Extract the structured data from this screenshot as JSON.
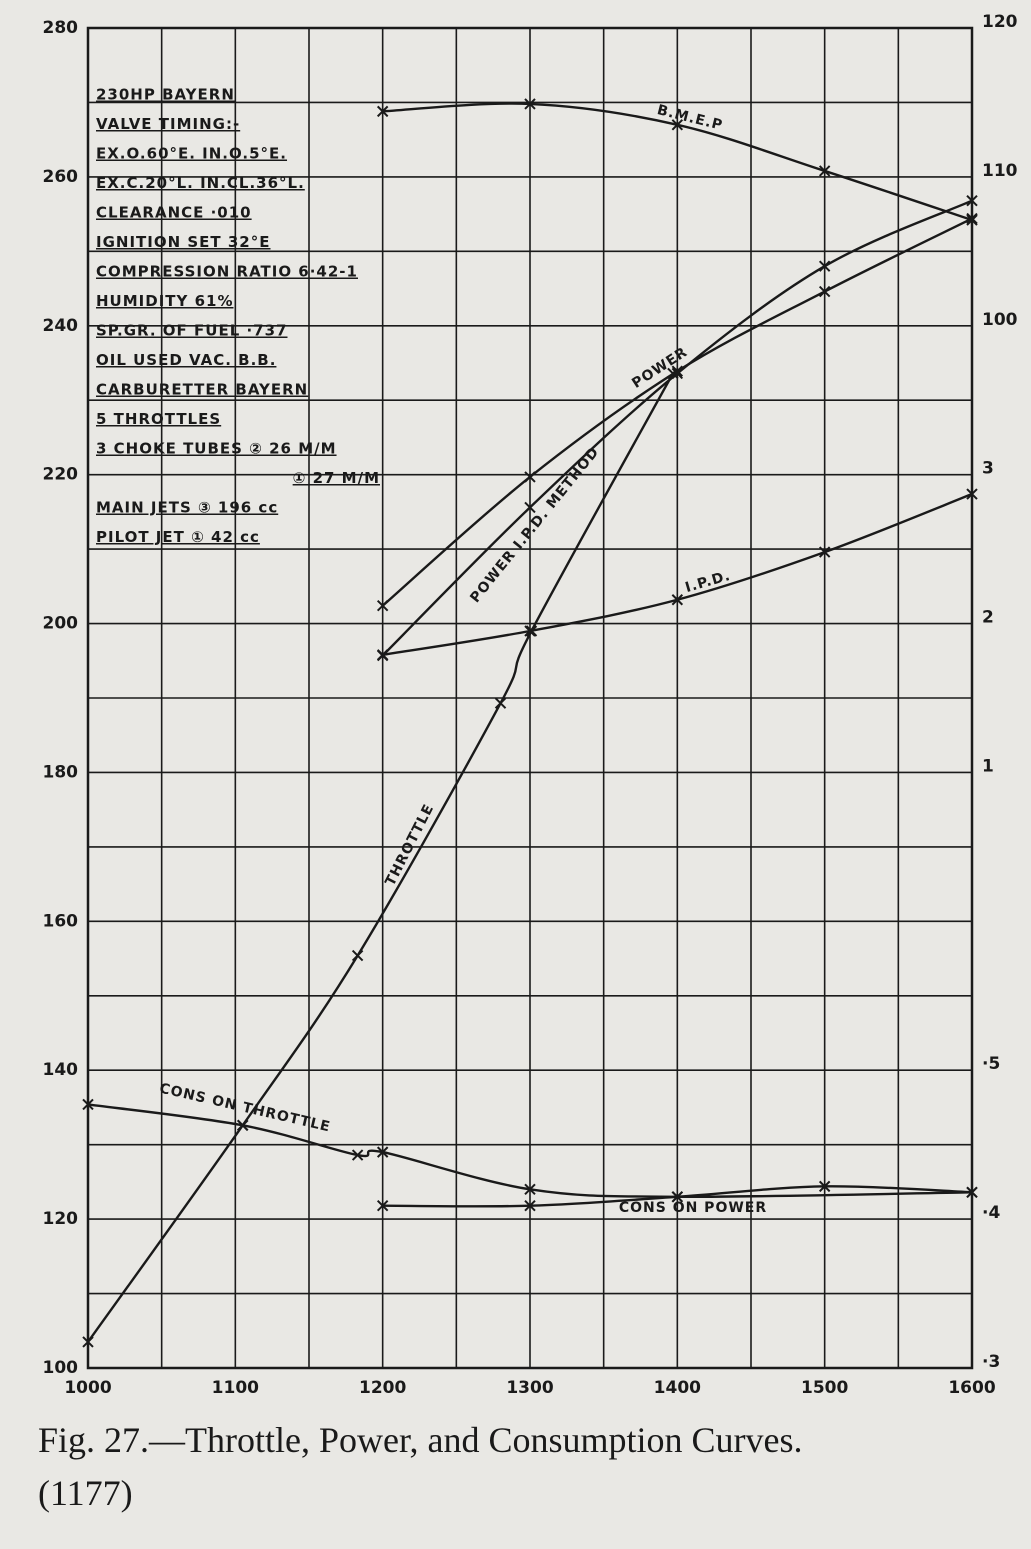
{
  "chart_data": {
    "type": "line",
    "caption": "Fig. 27.—Throttle, Power, and Consumption Curves.",
    "caption_number": "(1177)",
    "notes": [
      "230HP BAYERN",
      "VALVE TIMING:-",
      "EX.O.60°E. IN.O.5°E.",
      "EX.C.20°L. IN.CL.36°L.",
      "CLEARANCE ·010",
      "IGNITION SET 32°E",
      "COMPRESSION RATIO 6·42-1",
      "HUMIDITY 61%",
      "SP.GR. OF FUEL ·737",
      "OIL USED VAC. B.B.",
      "CARBURETTER BAYERN",
      "5 THROTTLES",
      "3 CHOKE TUBES ② 26 M/M",
      "① 27 M/M",
      "MAIN JETS ③ 196 cc",
      "PILOT JET ① 42 cc"
    ],
    "xlim": [
      1000,
      1600
    ],
    "xticks": [
      1000,
      1100,
      1200,
      1300,
      1400,
      1500,
      1600
    ],
    "xgrid": [
      1000,
      1050,
      1100,
      1150,
      1200,
      1250,
      1300,
      1350,
      1400,
      1450,
      1500,
      1550,
      1600
    ],
    "ylim": [
      100,
      280
    ],
    "yticks": [
      100,
      120,
      140,
      160,
      180,
      200,
      220,
      240,
      260,
      280
    ],
    "ygrid": [
      100,
      110,
      120,
      130,
      140,
      150,
      160,
      170,
      180,
      190,
      200,
      210,
      220,
      230,
      240,
      250,
      260,
      270,
      280
    ],
    "y2lim": [
      30,
      120
    ],
    "y2ticks": [
      100,
      110,
      120
    ],
    "y3lim": [
      -3,
      6
    ],
    "y3ticks": [
      1,
      2,
      3
    ],
    "y4lim": [
      0.3,
      1.2
    ],
    "y4ticks": [
      {
        "value": 0.3,
        "label": "·3"
      },
      {
        "value": 0.4,
        "label": "·4"
      },
      {
        "value": 0.5,
        "label": "·5"
      }
    ],
    "color": "#1a1a1a",
    "series": [
      {
        "name": "B.M.E.P",
        "axis": "y2",
        "x": [
          1200,
          1300,
          1400,
          1500,
          1600
        ],
        "values": [
          114.4,
          114.9,
          113.5,
          110.4,
          107.1
        ]
      },
      {
        "name": "POWER",
        "x": [
          1200,
          1300,
          1400,
          1500,
          1600
        ],
        "values": [
          202.4,
          219.7,
          233.9,
          244.6,
          254.4
        ]
      },
      {
        "name": "POWER I.P.D. METHOD",
        "x": [
          1200,
          1300,
          1400,
          1500,
          1600
        ],
        "values": [
          195.7,
          215.6,
          233.6,
          248,
          256.8
        ]
      },
      {
        "name": "I.P.D.",
        "axis": "y3",
        "x": [
          1200,
          1300,
          1400,
          1500,
          1600
        ],
        "values": [
          1.79,
          1.95,
          2.16,
          2.48,
          2.87
        ]
      },
      {
        "name": "THROTTLE",
        "x": [
          1000,
          1105,
          1183,
          1280,
          1301,
          1397
        ],
        "values": [
          103.5,
          132.6,
          155.4,
          189.3,
          199,
          233.6
        ]
      },
      {
        "name": "CONS ON THROTTLE",
        "axis": "y4",
        "x": [
          1000,
          1105,
          1183,
          1200,
          1300,
          1400,
          1600
        ],
        "values": [
          0.477,
          0.463,
          0.443,
          0.445,
          0.42,
          0.415,
          0.418
        ]
      },
      {
        "name": "CONS ON POWER",
        "axis": "y4",
        "x": [
          1200,
          1300,
          1400,
          1500,
          1600
        ],
        "values": [
          0.409,
          0.409,
          0.415,
          0.422,
          0.418
        ]
      }
    ]
  }
}
